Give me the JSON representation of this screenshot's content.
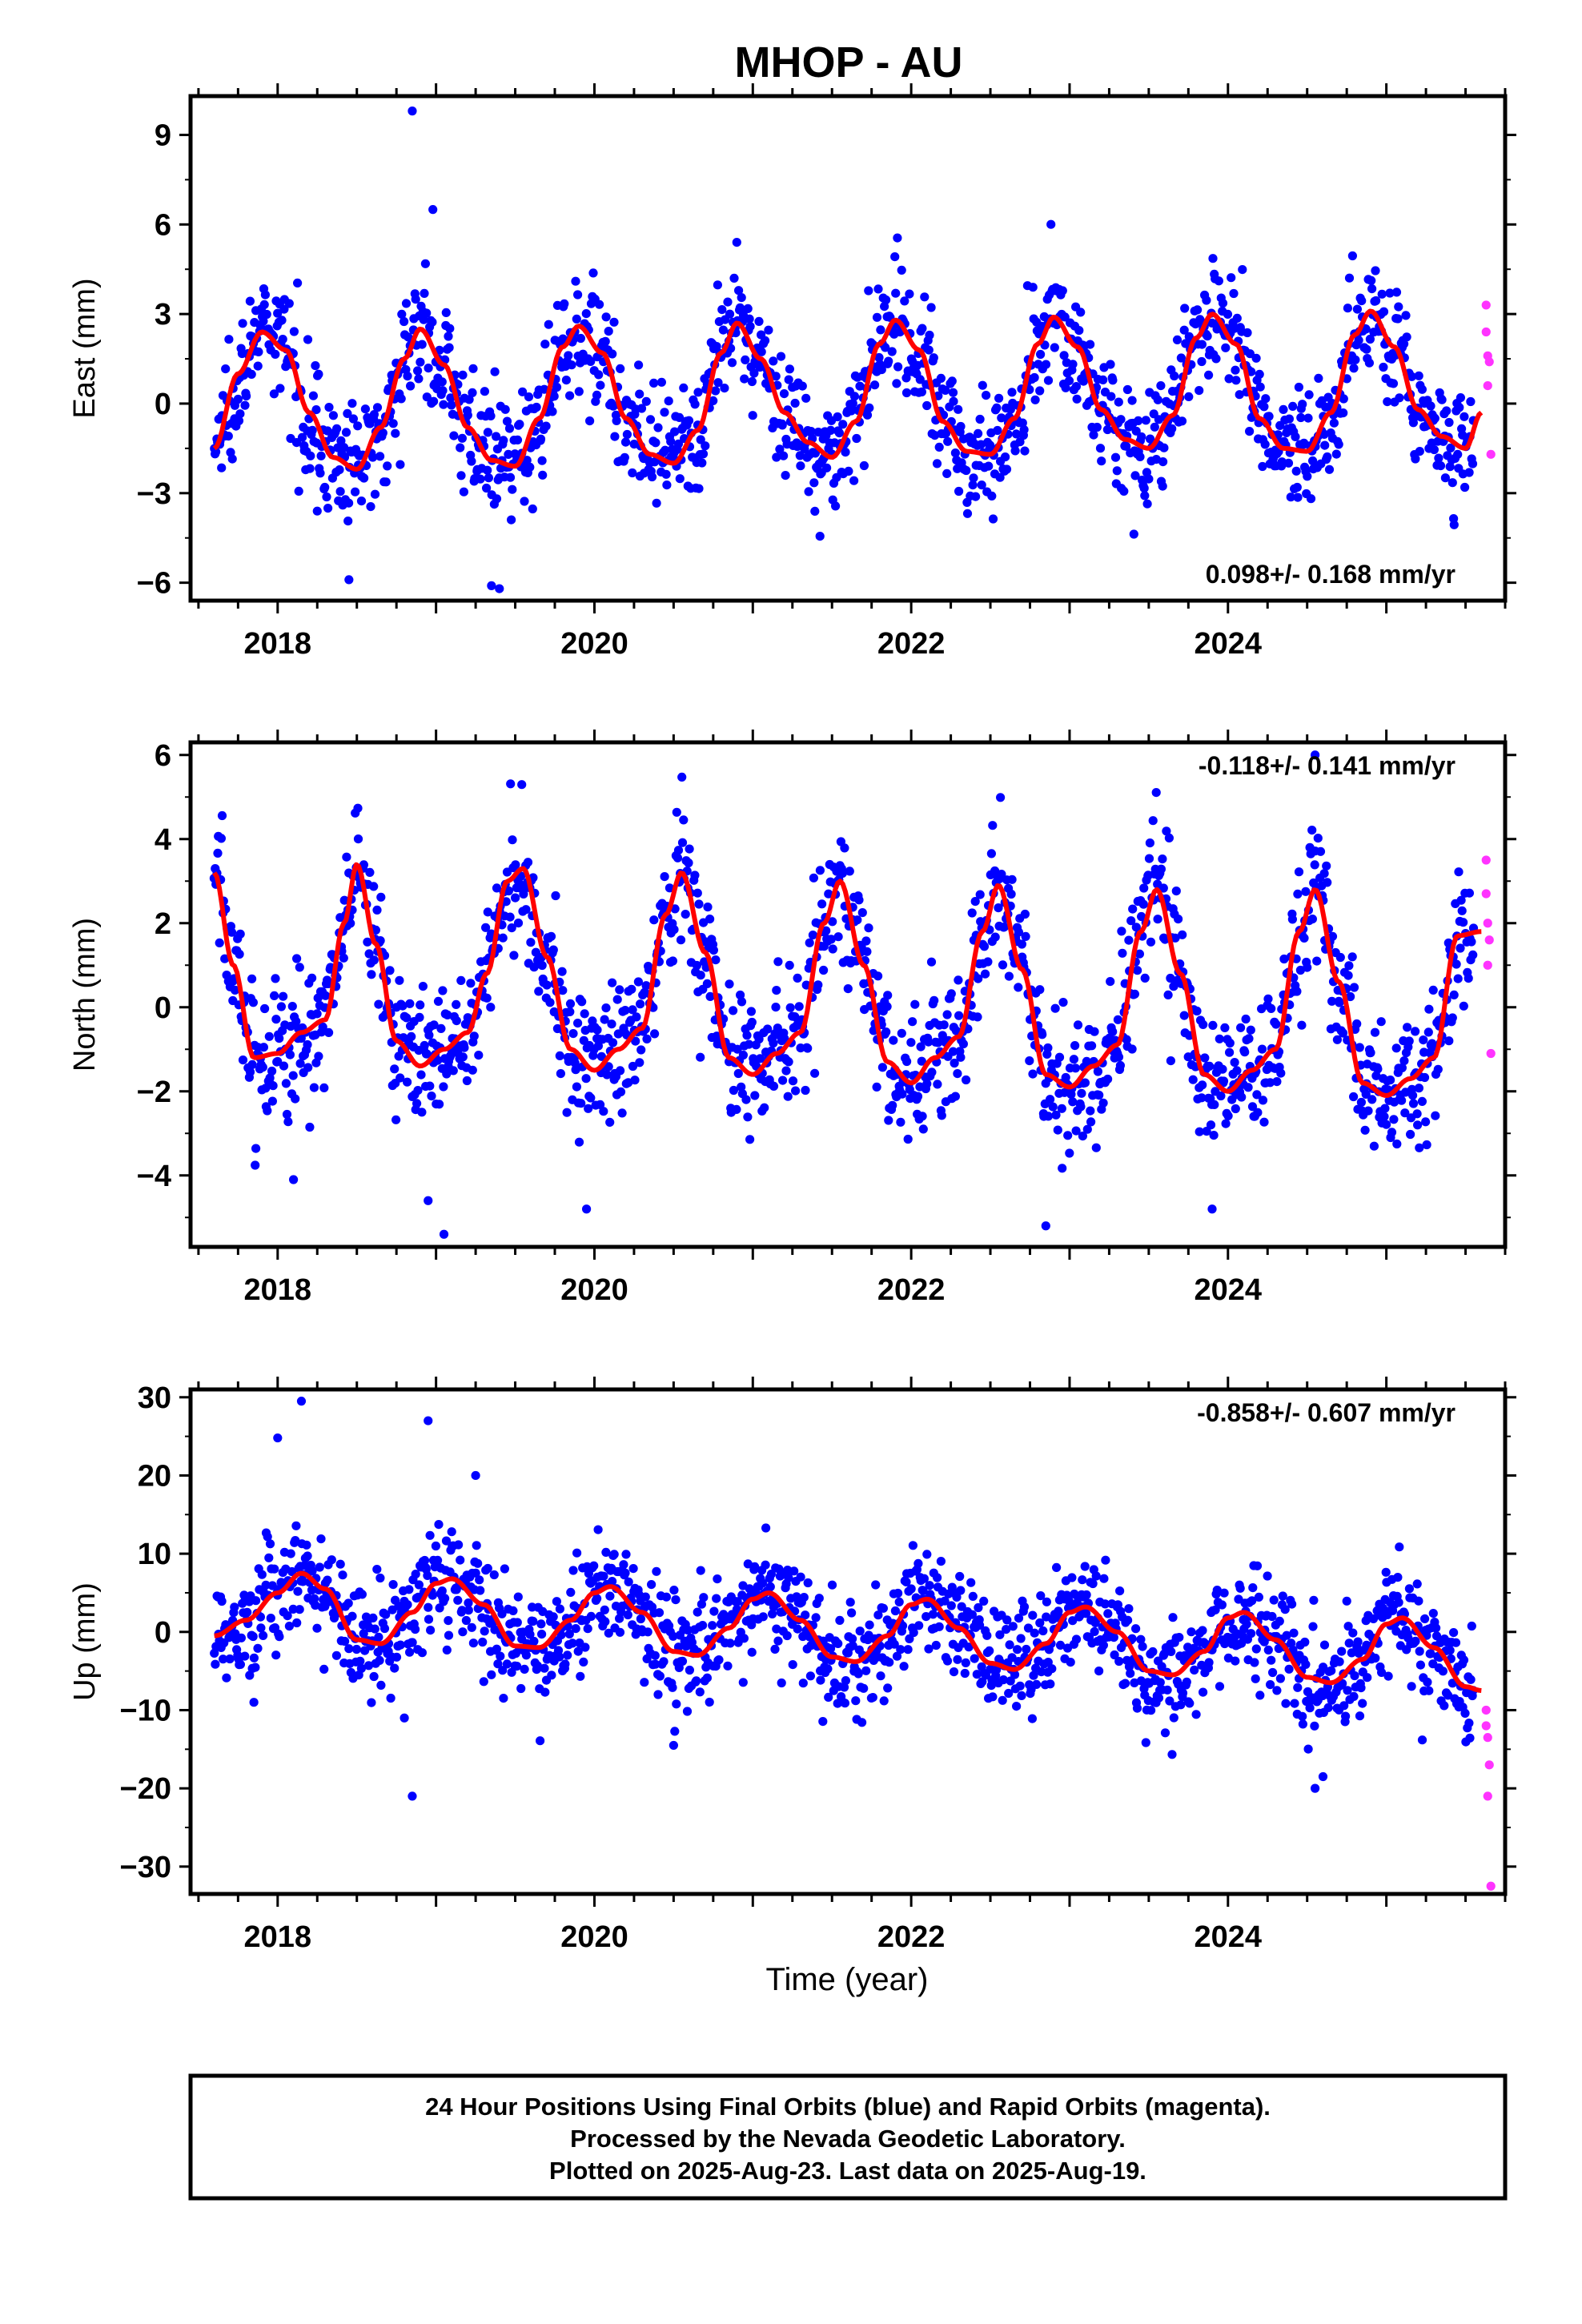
{
  "title": "MHOP - AU",
  "colors": {
    "final": "#0000ff",
    "rapid": "#ff33ff",
    "model": "#ff0000",
    "frame": "#000000"
  },
  "x_axis": {
    "label": "Time (year)",
    "xlim": [
      2017.45,
      2025.75
    ],
    "ticks": [
      "2018",
      "2020",
      "2022",
      "2024"
    ]
  },
  "footer": {
    "line1": "24 Hour Positions Using Final Orbits (blue) and Rapid Orbits (magenta).",
    "line2": "Processed by the Nevada Geodetic Laboratory.",
    "line3": "Plotted on 2025-Aug-23. Last data on 2025-Aug-19."
  },
  "chart_data": [
    {
      "type": "scatter",
      "panel": "east",
      "ylabel": "East (mm)",
      "ylim": [
        -6.6,
        10.3
      ],
      "yticks": [
        -6,
        -3,
        0,
        3,
        6,
        9
      ],
      "rate_text": "0.098+/- 0.168 mm/yr",
      "rate_position": "bottom-right",
      "series": [
        {
          "name": "Final Orbits",
          "color": "#0000ff",
          "x_range": [
            2017.6,
            2025.55
          ],
          "noise_sd": 1.0,
          "outliers": [
            [
              2018.85,
              9.8
            ],
            [
              2018.98,
              6.5
            ],
            [
              2019.4,
              -6.2
            ],
            [
              2019.35,
              -6.1
            ],
            [
              2018.45,
              -5.9
            ],
            [
              2018.25,
              -3.6
            ]
          ]
        },
        {
          "name": "Rapid Orbits",
          "color": "#ff33ff",
          "points": [
            [
              2025.63,
              3.3
            ],
            [
              2025.63,
              2.4
            ],
            [
              2025.64,
              1.6
            ],
            [
              2025.65,
              1.4
            ],
            [
              2025.64,
              0.6
            ],
            [
              2025.66,
              -1.7
            ]
          ]
        }
      ],
      "model": {
        "name": "fit",
        "color": "#ff0000",
        "x": [
          2017.6,
          2017.75,
          2017.9,
          2018.05,
          2018.2,
          2018.35,
          2018.5,
          2018.65,
          2018.8,
          2018.9,
          2019.05,
          2019.2,
          2019.35,
          2019.5,
          2019.65,
          2019.8,
          2019.9,
          2020.05,
          2020.2,
          2020.35,
          2020.5,
          2020.65,
          2020.8,
          2020.9,
          2021.05,
          2021.2,
          2021.35,
          2021.5,
          2021.65,
          2021.8,
          2021.9,
          2022.05,
          2022.2,
          2022.35,
          2022.5,
          2022.65,
          2022.8,
          2022.9,
          2023.05,
          2023.2,
          2023.35,
          2023.5,
          2023.65,
          2023.8,
          2023.9,
          2024.05,
          2024.2,
          2024.35,
          2024.5,
          2024.65,
          2024.8,
          2024.9,
          2025.05,
          2025.2,
          2025.35,
          2025.5,
          2025.6
        ],
        "y": [
          -1.5,
          1.0,
          2.4,
          1.8,
          -0.3,
          -1.8,
          -2.2,
          -0.8,
          1.5,
          2.5,
          1.3,
          -0.8,
          -1.9,
          -2.1,
          -0.5,
          1.9,
          2.6,
          1.7,
          -0.5,
          -1.7,
          -2.0,
          -0.9,
          1.7,
          2.7,
          1.5,
          -0.3,
          -1.3,
          -1.8,
          -0.6,
          2.0,
          2.8,
          1.8,
          -0.6,
          -1.6,
          -1.7,
          -0.5,
          2.0,
          2.9,
          1.9,
          -0.2,
          -1.2,
          -1.5,
          -0.4,
          2.2,
          3.0,
          2.0,
          -0.5,
          -1.5,
          -1.6,
          -0.3,
          2.3,
          3.1,
          1.9,
          -0.2,
          -1.1,
          -1.5,
          -0.3
        ]
      }
    },
    {
      "type": "scatter",
      "panel": "north",
      "ylabel": "North (mm)",
      "ylim": [
        -5.7,
        6.3
      ],
      "yticks": [
        -4,
        -2,
        0,
        2,
        4,
        6
      ],
      "rate_text": "-0.118+/- 0.141 mm/yr",
      "rate_position": "top-right",
      "series": [
        {
          "name": "Final Orbits",
          "color": "#0000ff",
          "x_range": [
            2017.6,
            2025.55
          ],
          "noise_sd": 0.85,
          "outliers": [
            [
              2019.05,
              -5.4
            ],
            [
              2018.95,
              -4.6
            ],
            [
              2019.95,
              -4.8
            ],
            [
              2022.85,
              -5.2
            ],
            [
              2023.9,
              -4.8
            ],
            [
              2024.55,
              6.0
            ],
            [
              2018.1,
              -4.1
            ]
          ]
        },
        {
          "name": "Rapid Orbits",
          "color": "#ff33ff",
          "points": [
            [
              2025.63,
              3.5
            ],
            [
              2025.63,
              2.7
            ],
            [
              2025.64,
              2.0
            ],
            [
              2025.65,
              1.6
            ],
            [
              2025.64,
              1.0
            ],
            [
              2025.66,
              -1.1
            ]
          ]
        }
      ],
      "model": {
        "name": "fit",
        "color": "#ff0000",
        "x": [
          2017.6,
          2017.72,
          2017.85,
          2018.0,
          2018.15,
          2018.3,
          2018.42,
          2018.5,
          2018.62,
          2018.75,
          2018.9,
          2019.05,
          2019.2,
          2019.32,
          2019.45,
          2019.55,
          2019.7,
          2019.85,
          2020.0,
          2020.15,
          2020.3,
          2020.45,
          2020.55,
          2020.7,
          2020.85,
          2021.0,
          2021.15,
          2021.3,
          2021.45,
          2021.55,
          2021.7,
          2021.85,
          2022.0,
          2022.15,
          2022.3,
          2022.45,
          2022.55,
          2022.7,
          2022.85,
          2023.0,
          2023.15,
          2023.3,
          2023.45,
          2023.55,
          2023.7,
          2023.85,
          2024.0,
          2024.15,
          2024.3,
          2024.45,
          2024.55,
          2024.7,
          2024.85,
          2025.0,
          2025.15,
          2025.3,
          2025.45,
          2025.6
        ],
        "y": [
          3.2,
          1.0,
          -1.2,
          -1.1,
          -0.6,
          -0.3,
          2.0,
          3.4,
          1.5,
          -0.8,
          -1.4,
          -1.0,
          -0.6,
          0.8,
          3.0,
          3.3,
          1.2,
          -1.0,
          -1.5,
          -1.0,
          -0.5,
          2.2,
          3.2,
          1.3,
          -1.2,
          -1.6,
          -1.1,
          -0.6,
          2.0,
          3.0,
          1.0,
          -1.3,
          -1.8,
          -1.2,
          -0.7,
          1.8,
          2.9,
          0.9,
          -1.6,
          -1.9,
          -1.4,
          -0.9,
          1.8,
          2.8,
          0.8,
          -1.6,
          -2.0,
          -1.5,
          -1.0,
          1.8,
          2.8,
          0.6,
          -1.8,
          -2.1,
          -1.7,
          -1.2,
          1.7,
          1.8
        ]
      }
    },
    {
      "type": "scatter",
      "panel": "up",
      "ylabel": "Up (mm)",
      "ylim": [
        -33.5,
        31.0
      ],
      "yticks": [
        -30,
        -20,
        -10,
        0,
        10,
        20,
        30
      ],
      "rate_text": "-0.858+/- 0.607 mm/yr",
      "rate_position": "top-right",
      "series": [
        {
          "name": "Final Orbits",
          "color": "#0000ff",
          "x_range": [
            2017.6,
            2025.55
          ],
          "noise_sd": 3.6,
          "outliers": [
            [
              2018.15,
              29.5
            ],
            [
              2018.0,
              24.8
            ],
            [
              2018.95,
              27.0
            ],
            [
              2019.25,
              20.0
            ],
            [
              2018.85,
              -21.0
            ],
            [
              2017.85,
              -9.0
            ],
            [
              2018.8,
              -11.0
            ],
            [
              2020.5,
              -14.5
            ],
            [
              2024.55,
              -20.0
            ],
            [
              2024.6,
              -18.5
            ]
          ]
        },
        {
          "name": "Rapid Orbits",
          "color": "#ff33ff",
          "points": [
            [
              2025.63,
              -10.0
            ],
            [
              2025.63,
              -12.0
            ],
            [
              2025.64,
              -13.5
            ],
            [
              2025.65,
              -17.0
            ],
            [
              2025.64,
              -21.0
            ],
            [
              2025.66,
              -32.5
            ]
          ]
        }
      ],
      "model": {
        "name": "fit",
        "color": "#ff0000",
        "x": [
          2017.6,
          2017.8,
          2018.0,
          2018.15,
          2018.3,
          2018.5,
          2018.65,
          2018.85,
          2019.0,
          2019.1,
          2019.3,
          2019.5,
          2019.65,
          2019.85,
          2020.0,
          2020.1,
          2020.3,
          2020.5,
          2020.65,
          2020.85,
          2021.0,
          2021.1,
          2021.3,
          2021.5,
          2021.65,
          2021.85,
          2022.0,
          2022.1,
          2022.3,
          2022.5,
          2022.65,
          2022.85,
          2023.0,
          2023.1,
          2023.3,
          2023.5,
          2023.65,
          2023.85,
          2024.0,
          2024.1,
          2024.3,
          2024.5,
          2024.65,
          2024.85,
          2025.0,
          2025.1,
          2025.3,
          2025.5,
          2025.6
        ],
        "y": [
          -0.5,
          1.5,
          5.0,
          7.5,
          5.5,
          -1.0,
          -1.5,
          2.5,
          6.2,
          6.8,
          3.5,
          -1.8,
          -2.0,
          1.5,
          5.0,
          5.8,
          2.5,
          -2.5,
          -3.0,
          0.5,
          4.2,
          5.0,
          1.5,
          -3.2,
          -3.8,
          -0.5,
          3.5,
          4.2,
          0.5,
          -4.0,
          -4.8,
          -1.5,
          2.5,
          3.2,
          0.0,
          -5.0,
          -5.5,
          -2.5,
          1.8,
          2.5,
          -1.0,
          -5.8,
          -6.5,
          -3.5,
          1.0,
          1.8,
          -2.0,
          -7.0,
          -7.5
        ]
      }
    }
  ]
}
